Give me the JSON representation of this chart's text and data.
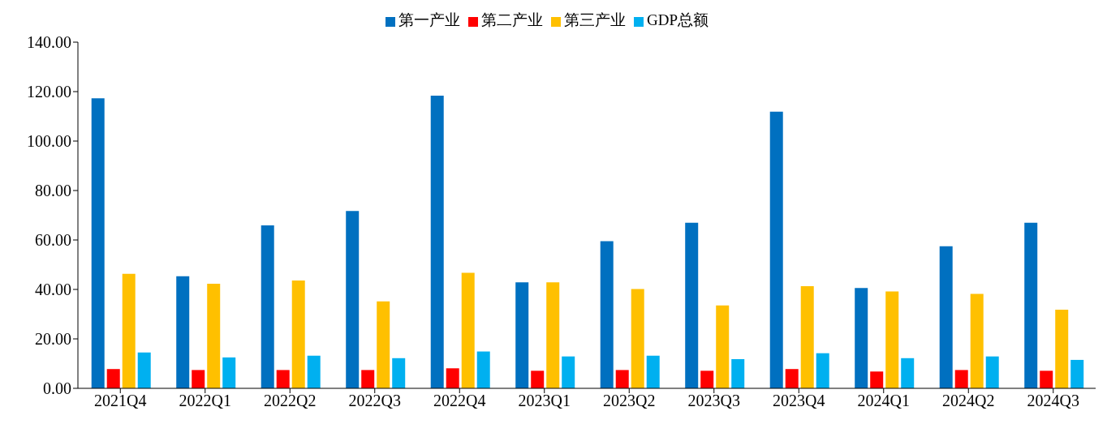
{
  "chart_data": {
    "type": "bar",
    "categories": [
      "2021Q4",
      "2022Q1",
      "2022Q2",
      "2022Q3",
      "2022Q4",
      "2023Q1",
      "2023Q2",
      "2023Q3",
      "2023Q4",
      "2024Q1",
      "2024Q2",
      "2024Q3"
    ],
    "series": [
      {
        "name": "第一产业",
        "color": "#0070c0",
        "values": [
          117.3,
          45.3,
          65.9,
          71.7,
          118.4,
          42.9,
          59.5,
          67.0,
          111.9,
          40.6,
          57.5,
          67.0
        ]
      },
      {
        "name": "第二产业",
        "color": "#ff0000",
        "values": [
          7.8,
          7.4,
          7.4,
          7.4,
          8.1,
          7.1,
          7.4,
          7.1,
          7.8,
          6.8,
          7.4,
          7.1
        ]
      },
      {
        "name": "第三产业",
        "color": "#ffc000",
        "values": [
          46.3,
          42.3,
          43.6,
          35.2,
          46.7,
          42.9,
          40.2,
          33.5,
          41.3,
          39.2,
          38.2,
          31.8
        ]
      },
      {
        "name": "GDP总额",
        "color": "#00b0f0",
        "values": [
          14.5,
          12.5,
          13.2,
          12.2,
          14.9,
          12.9,
          13.2,
          11.8,
          14.2,
          12.2,
          12.9,
          11.5
        ]
      }
    ],
    "ylim": [
      0,
      140
    ],
    "yticks": [
      {
        "value": 0,
        "label": "0.00"
      },
      {
        "value": 20,
        "label": "20.00"
      },
      {
        "value": 40,
        "label": "40.00"
      },
      {
        "value": 60,
        "label": "60.00"
      },
      {
        "value": 80,
        "label": "80.00"
      },
      {
        "value": 100,
        "label": "100.00"
      },
      {
        "value": 120,
        "label": "120.00"
      },
      {
        "value": 140,
        "label": "140.00"
      }
    ],
    "grid": false,
    "legend": "top"
  }
}
